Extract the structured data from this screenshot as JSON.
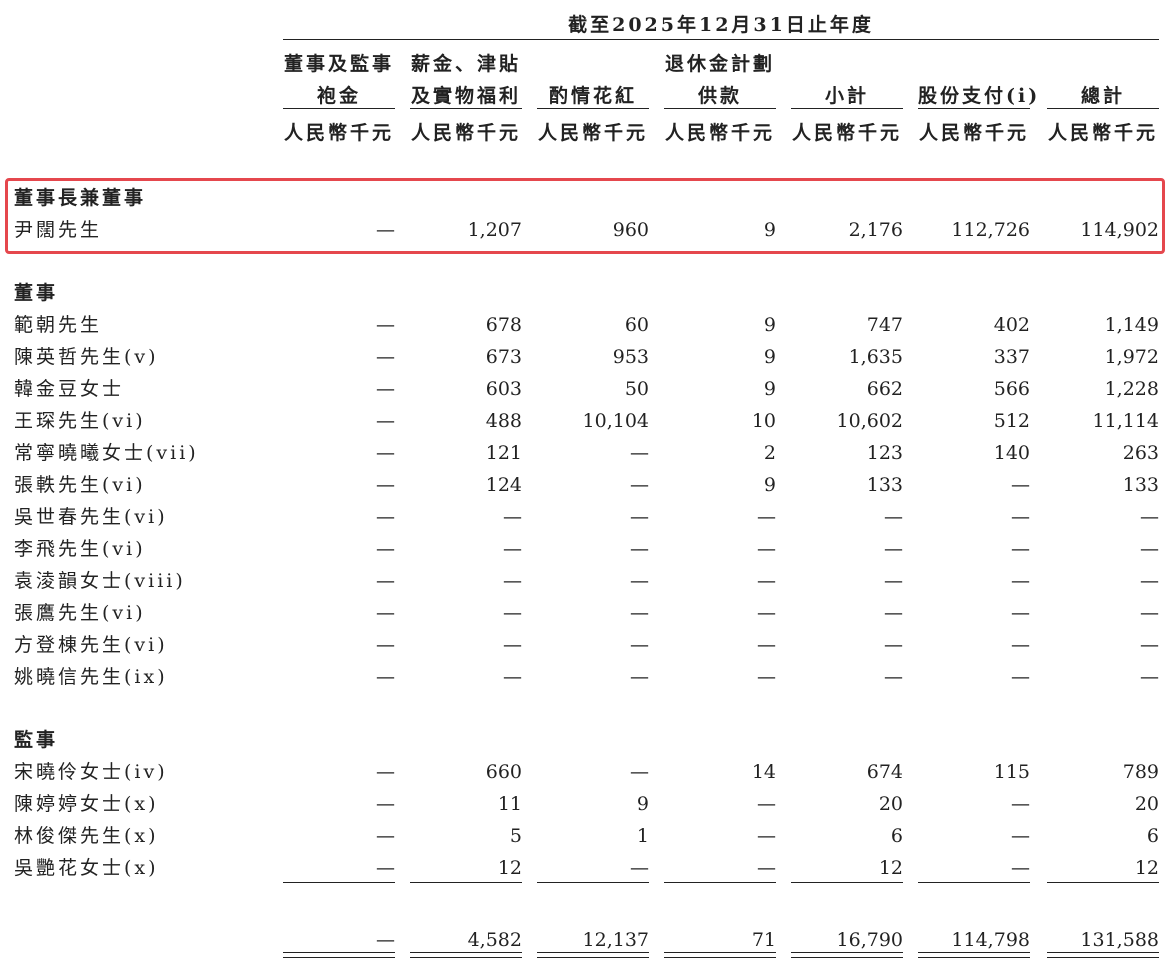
{
  "header": {
    "period": "截至2025年12月31日止年度",
    "columns": [
      [
        "董事及監事",
        "袍金"
      ],
      [
        "薪金、津貼",
        "及實物福利"
      ],
      [
        "酌情花紅"
      ],
      [
        "退休金計劃",
        "供款"
      ],
      [
        "小計"
      ],
      [
        "股份支付(i)"
      ],
      [
        "總計"
      ]
    ],
    "unit": "人民幣千元"
  },
  "sections": [
    {
      "title": "董事長兼董事",
      "rows": [
        {
          "name": "尹闊先生",
          "values": [
            "—",
            "1,207",
            "960",
            "9",
            "2,176",
            "112,726",
            "114,902"
          ]
        }
      ]
    },
    {
      "title": "董事",
      "rows": [
        {
          "name": "範朝先生",
          "values": [
            "—",
            "678",
            "60",
            "9",
            "747",
            "402",
            "1,149"
          ]
        },
        {
          "name": "陳英哲先生(v)",
          "values": [
            "—",
            "673",
            "953",
            "9",
            "1,635",
            "337",
            "1,972"
          ]
        },
        {
          "name": "韓金豆女士",
          "values": [
            "—",
            "603",
            "50",
            "9",
            "662",
            "566",
            "1,228"
          ]
        },
        {
          "name": "王琛先生(vi)",
          "values": [
            "—",
            "488",
            "10,104",
            "10",
            "10,602",
            "512",
            "11,114"
          ]
        },
        {
          "name": "常寧曉曦女士(vii)",
          "values": [
            "—",
            "121",
            "—",
            "2",
            "123",
            "140",
            "263"
          ]
        },
        {
          "name": "張軼先生(vi)",
          "values": [
            "—",
            "124",
            "—",
            "9",
            "133",
            "—",
            "133"
          ]
        },
        {
          "name": "吳世春先生(vi)",
          "values": [
            "—",
            "—",
            "—",
            "—",
            "—",
            "—",
            "—"
          ]
        },
        {
          "name": "李飛先生(vi)",
          "values": [
            "—",
            "—",
            "—",
            "—",
            "—",
            "—",
            "—"
          ]
        },
        {
          "name": "袁淩韻女士(viii)",
          "values": [
            "—",
            "—",
            "—",
            "—",
            "—",
            "—",
            "—"
          ]
        },
        {
          "name": "張鷹先生(vi)",
          "values": [
            "—",
            "—",
            "—",
            "—",
            "—",
            "—",
            "—"
          ]
        },
        {
          "name": "方登棟先生(vi)",
          "values": [
            "—",
            "—",
            "—",
            "—",
            "—",
            "—",
            "—"
          ]
        },
        {
          "name": "姚曉信先生(ix)",
          "values": [
            "—",
            "—",
            "—",
            "—",
            "—",
            "—",
            "—"
          ]
        }
      ]
    },
    {
      "title": "監事",
      "rows": [
        {
          "name": "宋曉伶女士(iv)",
          "values": [
            "—",
            "660",
            "—",
            "14",
            "674",
            "115",
            "789"
          ]
        },
        {
          "name": "陳婷婷女士(x)",
          "values": [
            "—",
            "11",
            "9",
            "—",
            "20",
            "—",
            "20"
          ]
        },
        {
          "name": "林俊傑先生(x)",
          "values": [
            "—",
            "5",
            "1",
            "—",
            "6",
            "—",
            "6"
          ]
        },
        {
          "name": "吳艷花女士(x)",
          "values": [
            "—",
            "12",
            "—",
            "—",
            "12",
            "—",
            "12"
          ]
        }
      ]
    }
  ],
  "totals": [
    "—",
    "4,582",
    "12,137",
    "71",
    "16,790",
    "114,798",
    "131,588"
  ]
}
